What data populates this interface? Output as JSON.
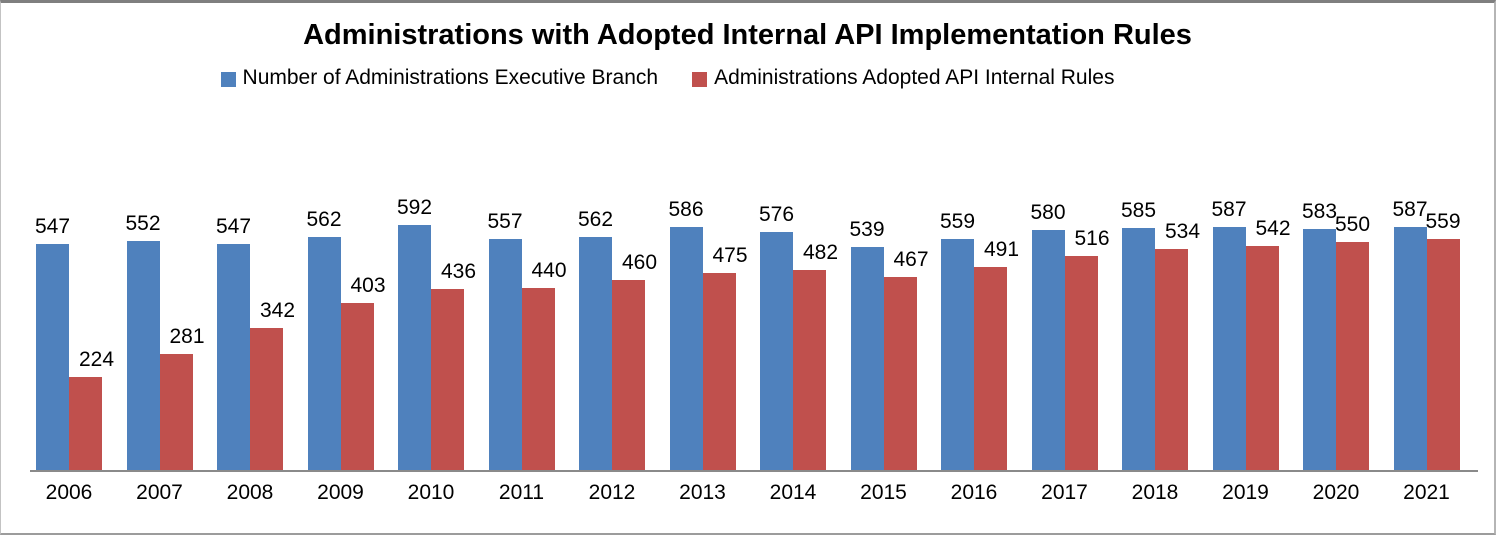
{
  "title": "Administrations with Adopted Internal API Implementation Rules",
  "colors": {
    "series_blue": "#4F81BD",
    "series_red": "#C0504D",
    "axis_line": "#8a8a8a",
    "label_text": "#000000"
  },
  "chart_data": {
    "type": "bar",
    "title": "Administrations with Adopted Internal API Implementation Rules",
    "categories": [
      "2006",
      "2007",
      "2008",
      "2009",
      "2010",
      "2011",
      "2012",
      "2013",
      "2014",
      "2015",
      "2016",
      "2017",
      "2018",
      "2019",
      "2020",
      "2021"
    ],
    "series": [
      {
        "name": "Number of Administrations Executive Branch",
        "color": "#4F81BD",
        "values": [
          547,
          552,
          547,
          562,
          592,
          557,
          562,
          586,
          576,
          539,
          559,
          580,
          585,
          587,
          583,
          587
        ]
      },
      {
        "name": "Administrations Adopted API Internal Rules",
        "color": "#C0504D",
        "values": [
          224,
          281,
          342,
          403,
          436,
          440,
          460,
          475,
          482,
          467,
          491,
          516,
          534,
          542,
          550,
          559
        ]
      }
    ],
    "xlabel": "",
    "ylabel": "",
    "y_axis_visible": false,
    "grid": false,
    "data_labels": true,
    "legend_position": "top"
  }
}
